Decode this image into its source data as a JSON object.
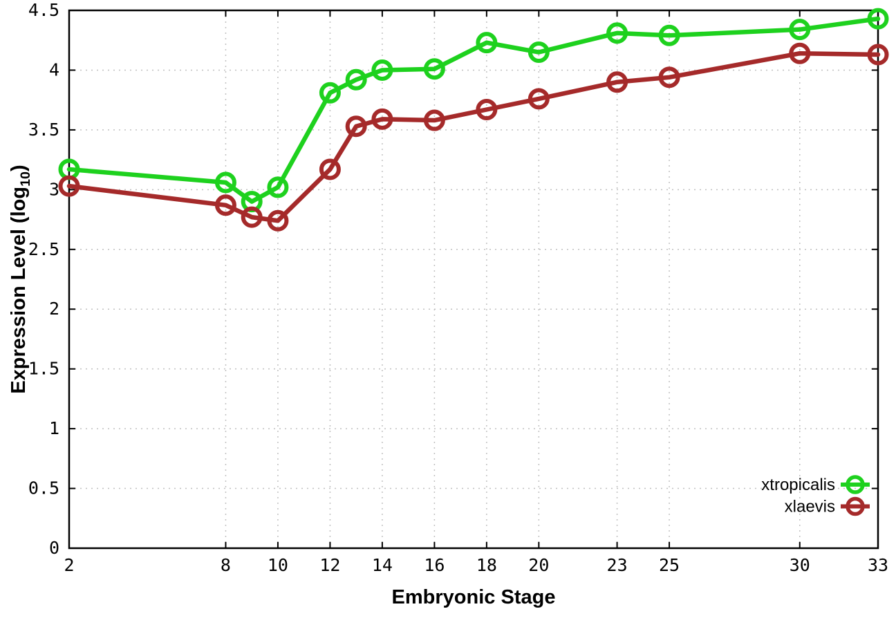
{
  "figure": {
    "xlabel": "Embryonic Stage",
    "ylabel": {
      "prefix": "Expression Level (log",
      "sub": "10",
      "suffix": ")"
    }
  },
  "chart_data": {
    "type": "line",
    "title": "",
    "xlabel": "Embryonic Stage",
    "ylabel": "Expression Level (log10)",
    "x": [
      2,
      8,
      9,
      10,
      12,
      13,
      14,
      16,
      18,
      20,
      23,
      25,
      30,
      33
    ],
    "series": [
      {
        "name": "xtropicalis",
        "color": "#1ed11e",
        "values": [
          3.17,
          3.06,
          2.9,
          3.02,
          3.81,
          3.92,
          4.0,
          4.01,
          4.23,
          4.15,
          4.31,
          4.29,
          4.34,
          4.43
        ]
      },
      {
        "name": "xlaevis",
        "color": "#a52a2a",
        "values": [
          3.03,
          2.87,
          2.77,
          2.74,
          3.17,
          3.53,
          3.59,
          3.58,
          3.67,
          3.76,
          3.9,
          3.94,
          4.14,
          4.13
        ]
      }
    ],
    "xticks": [
      2,
      8,
      10,
      12,
      14,
      16,
      18,
      20,
      23,
      25,
      30,
      33
    ],
    "xtick_labels": [
      "2",
      "8",
      "10",
      "12",
      "14",
      "16",
      "18",
      "20",
      "23",
      "25",
      "30",
      "33"
    ],
    "yticks": [
      0,
      0.5,
      1,
      1.5,
      2,
      2.5,
      3,
      3.5,
      4,
      4.5
    ],
    "ytick_labels": [
      "0",
      "0.5",
      "1",
      "1.5",
      "2",
      "2.5",
      "3",
      "3.5",
      "4",
      "4.5"
    ],
    "xlim": [
      2,
      33
    ],
    "ylim": [
      0,
      4.5
    ],
    "grid": true,
    "grid_style": "dotted",
    "legend_position": "inside-bottom-right",
    "marker": "open-circle",
    "colors": {
      "grid": "#c0c0c0",
      "axis": "#000000",
      "tick_text": "#000000"
    }
  }
}
